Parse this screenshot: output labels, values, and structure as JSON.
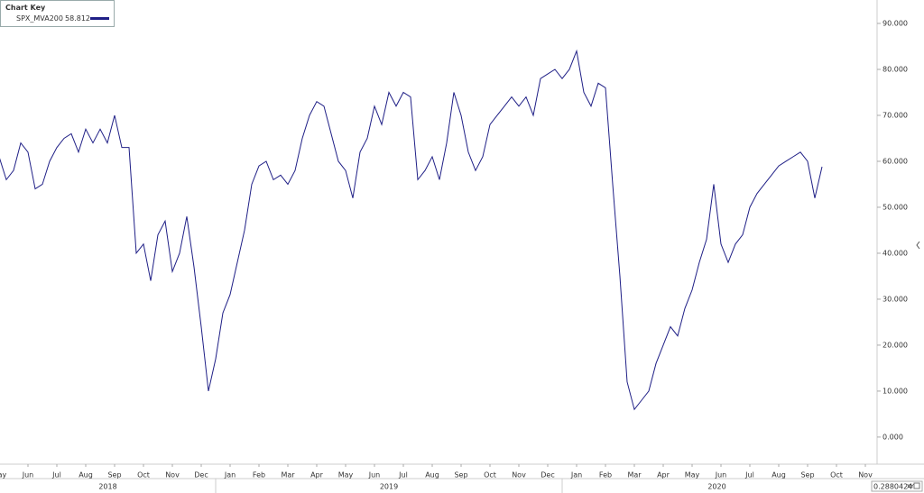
{
  "chart_data": {
    "type": "line",
    "key_title": "Chart Key",
    "categories": [
      "May",
      null,
      null,
      null,
      "Jun",
      null,
      null,
      null,
      "Jul",
      null,
      null,
      null,
      "Aug",
      null,
      null,
      null,
      "Sep",
      null,
      null,
      null,
      "Oct",
      null,
      null,
      null,
      "Nov",
      null,
      null,
      null,
      "Dec",
      null,
      null,
      null,
      "Jan",
      null,
      null,
      null,
      "Feb",
      null,
      null,
      null,
      "Mar",
      null,
      null,
      null,
      "Apr",
      null,
      null,
      null,
      "May",
      null,
      null,
      null,
      "Jun",
      null,
      null,
      null,
      "Jul",
      null,
      null,
      null,
      "Aug",
      null,
      null,
      null,
      "Sep",
      null,
      null,
      null,
      "Oct",
      null,
      null,
      null,
      "Nov",
      null,
      null,
      null,
      "Dec",
      null,
      null,
      null,
      "Jan",
      null,
      null,
      null,
      "Feb",
      null,
      null,
      null,
      "Mar",
      null,
      null,
      null,
      "Apr",
      null,
      null,
      null,
      "May",
      null,
      null,
      null,
      "Jun",
      null,
      null,
      null,
      "Jul",
      null,
      null,
      null,
      "Aug",
      null,
      null,
      null,
      "Sep",
      null,
      null,
      null,
      "Oct",
      null,
      null,
      null,
      "Nov",
      null,
      null,
      null
    ],
    "years": [
      "2018",
      "2019",
      "2020"
    ],
    "series": [
      {
        "name": "SPX_MVA200",
        "last_value": "58.812",
        "color": "#1f1f86",
        "values": [
          61,
          56,
          58,
          64,
          62,
          54,
          55,
          60,
          63,
          65,
          66,
          62,
          67,
          64,
          67,
          64,
          70,
          63,
          63,
          40,
          42,
          34,
          44,
          47,
          36,
          40,
          48,
          37,
          24,
          10,
          17,
          27,
          31,
          38,
          45,
          55,
          59,
          60,
          56,
          57,
          55,
          58,
          65,
          70,
          73,
          72,
          66,
          60,
          58,
          52,
          62,
          65,
          72,
          68,
          75,
          72,
          75,
          74,
          56,
          58,
          61,
          56,
          64,
          75,
          70,
          62,
          58,
          61,
          68,
          70,
          72,
          74,
          72,
          74,
          70,
          78,
          79,
          80,
          78,
          80,
          84,
          75,
          72,
          77,
          76,
          55,
          35,
          12,
          6,
          8,
          10,
          16,
          20,
          24,
          22,
          28,
          32,
          38,
          43,
          55,
          42,
          38,
          42,
          44,
          50,
          53,
          55,
          57,
          59,
          60,
          61,
          62,
          60,
          52,
          58.812,
          null,
          null,
          null,
          null,
          null,
          null,
          null,
          null,
          null
        ]
      }
    ],
    "ylim": [
      -5.9,
      95.1
    ],
    "yticks": [
      {
        "value": 0,
        "label": "0.000"
      },
      {
        "value": 10,
        "label": "10.000"
      },
      {
        "value": 20,
        "label": "20.000"
      },
      {
        "value": 30,
        "label": "30.000"
      },
      {
        "value": 40,
        "label": "40.000"
      },
      {
        "value": 50,
        "label": "50.000"
      },
      {
        "value": 60,
        "label": "60.000"
      },
      {
        "value": 70,
        "label": "70.000"
      },
      {
        "value": 80,
        "label": "80.000"
      },
      {
        "value": 90,
        "label": "90.000"
      }
    ],
    "status_value": "0.2880424",
    "status_mode": "XY"
  }
}
